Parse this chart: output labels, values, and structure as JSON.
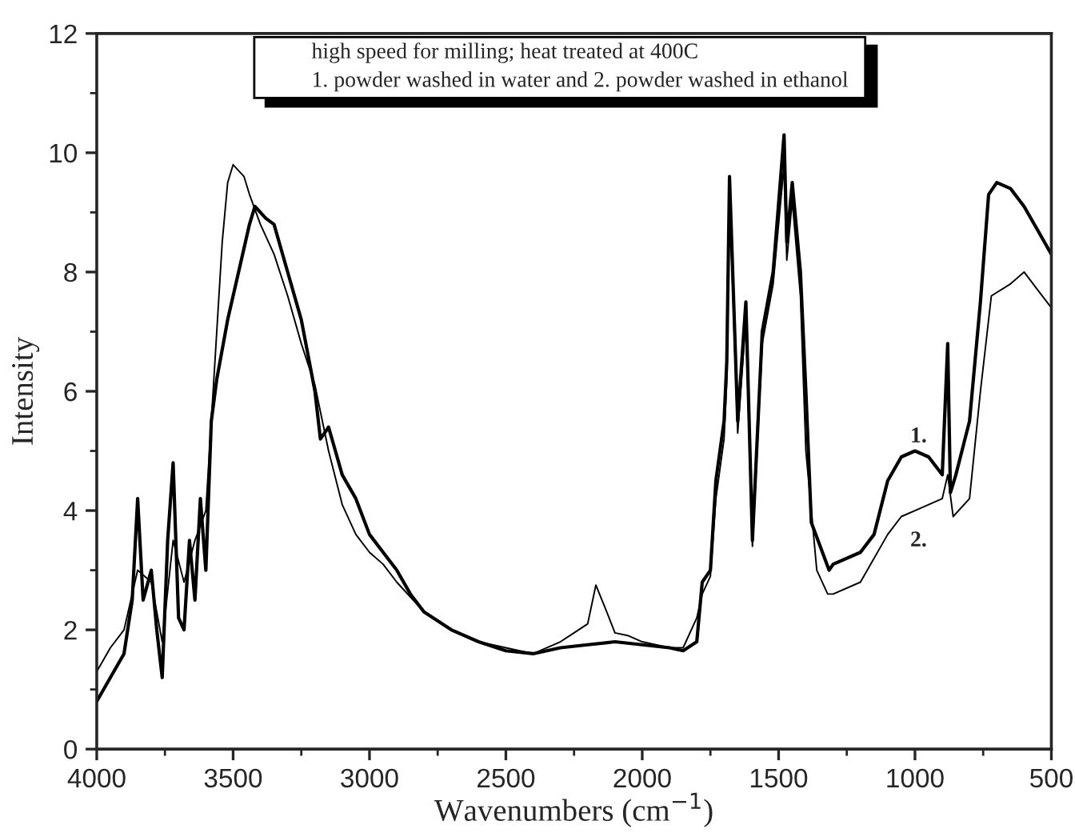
{
  "chart_data": {
    "type": "line",
    "xlabel": "Wavenumbers (cm$^{−1}$)",
    "ylabel": "Intensity",
    "xlim": [
      4000,
      500
    ],
    "xticks": [
      4000,
      3500,
      3000,
      2500,
      2000,
      1500,
      1000,
      500
    ],
    "ylim": [
      0,
      12
    ],
    "yticks": [
      0,
      2,
      4,
      6,
      8,
      10,
      12
    ],
    "grid": false,
    "legend": false,
    "marker": "none",
    "line_style": "solid",
    "annotations": [
      "high speed for milling; heat treated at 400C",
      "1. powder washed in water and 2. powder washed in ethanol",
      {
        "text": "1.",
        "x": 1050,
        "y": 4.9
      },
      {
        "text": "2.",
        "x": 1050,
        "y": 3.9
      }
    ],
    "series": [
      {
        "color": "#000000",
        "x": [
          4000,
          3950,
          3900,
          3870,
          3850,
          3830,
          3800,
          3780,
          3760,
          3740,
          3720,
          3700,
          3680,
          3660,
          3640,
          3620,
          3600,
          3580,
          3560,
          3520,
          3480,
          3440,
          3420,
          3380,
          3350,
          3300,
          3250,
          3200,
          3180,
          3150,
          3100,
          3050,
          3000,
          2950,
          2900,
          2850,
          2800,
          2700,
          2600,
          2500,
          2400,
          2300,
          2200,
          2100,
          2000,
          1900,
          1850,
          1800,
          1780,
          1750,
          1730,
          1700,
          1690,
          1680,
          1650,
          1620,
          1596,
          1560,
          1520,
          1480,
          1470,
          1450,
          1420,
          1400,
          1380,
          1315,
          1300,
          1200,
          1150,
          1100,
          1050,
          1000,
          950,
          900,
          880,
          870,
          850,
          800,
          760,
          730,
          700,
          650,
          600,
          550,
          500
        ],
        "values": [
          0.8,
          1.2,
          1.6,
          2.5,
          4.2,
          2.5,
          3.0,
          2.0,
          1.2,
          3.5,
          4.8,
          2.2,
          2.0,
          3.5,
          2.5,
          4.2,
          3.0,
          5.5,
          6.2,
          7.2,
          8.0,
          8.8,
          9.1,
          8.9,
          8.8,
          8.0,
          7.2,
          6.0,
          5.2,
          5.4,
          4.6,
          4.2,
          3.6,
          3.3,
          3.0,
          2.6,
          2.3,
          2.0,
          1.8,
          1.65,
          1.6,
          1.7,
          1.75,
          1.8,
          1.75,
          1.7,
          1.65,
          1.8,
          2.8,
          3.0,
          4.5,
          5.5,
          6.5,
          9.6,
          5.5,
          7.5,
          3.5,
          7.0,
          8.0,
          10.3,
          8.5,
          9.5,
          8.0,
          6.0,
          3.8,
          3.0,
          3.1,
          3.3,
          3.6,
          4.5,
          4.9,
          5.0,
          4.9,
          4.6,
          6.8,
          4.3,
          4.6,
          5.5,
          7.5,
          9.3,
          9.5,
          9.4,
          9.1,
          8.7,
          8.3
        ]
      },
      {
        "color": "#000000",
        "x": [
          4000,
          3950,
          3900,
          3850,
          3800,
          3760,
          3720,
          3680,
          3640,
          3600,
          3580,
          3560,
          3540,
          3520,
          3500,
          3460,
          3440,
          3400,
          3350,
          3300,
          3250,
          3200,
          3150,
          3100,
          3050,
          3000,
          2950,
          2900,
          2800,
          2700,
          2600,
          2500,
          2400,
          2300,
          2250,
          2200,
          2170,
          2130,
          2100,
          2050,
          2000,
          1900,
          1850,
          1800,
          1780,
          1750,
          1730,
          1700,
          1690,
          1680,
          1650,
          1620,
          1596,
          1560,
          1520,
          1480,
          1470,
          1450,
          1420,
          1400,
          1360,
          1320,
          1300,
          1200,
          1100,
          1050,
          1000,
          950,
          900,
          880,
          860,
          800,
          760,
          720,
          650,
          600,
          550,
          500
        ],
        "values": [
          1.3,
          1.7,
          2.0,
          3.0,
          2.8,
          1.8,
          3.5,
          2.8,
          3.5,
          4.0,
          5.5,
          7.0,
          8.5,
          9.5,
          9.8,
          9.6,
          9.3,
          8.8,
          8.3,
          7.6,
          6.8,
          6.1,
          5.0,
          4.1,
          3.6,
          3.3,
          3.1,
          2.8,
          2.3,
          2.0,
          1.8,
          1.7,
          1.6,
          1.8,
          1.95,
          2.1,
          2.75,
          2.3,
          1.95,
          1.9,
          1.8,
          1.7,
          1.7,
          2.2,
          2.6,
          2.9,
          4.2,
          5.2,
          6.2,
          9.3,
          5.3,
          7.2,
          3.4,
          6.8,
          7.8,
          9.8,
          8.2,
          9.2,
          7.6,
          5.0,
          3.0,
          2.6,
          2.6,
          2.8,
          3.6,
          3.9,
          4.0,
          4.1,
          4.2,
          4.6,
          3.9,
          4.2,
          6.0,
          7.6,
          7.8,
          8.0,
          7.7,
          7.4
        ]
      }
    ]
  }
}
